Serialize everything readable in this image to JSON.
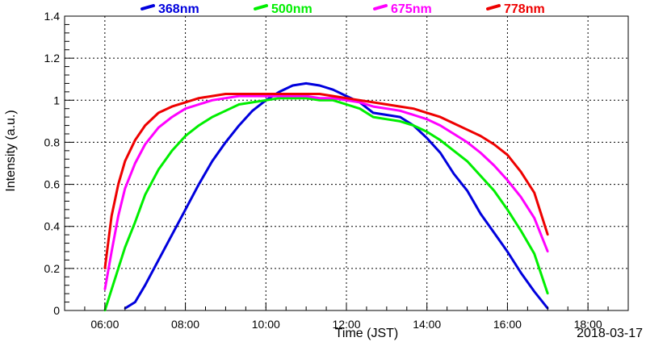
{
  "chart_data": {
    "type": "line",
    "title": "",
    "xlabel": "Time (JST)",
    "ylabel": "Intensity (a.u.)",
    "date_label": "2018-03-17",
    "xlim": [
      "05:00",
      "19:00"
    ],
    "ylim": [
      0,
      1.4
    ],
    "x_ticks": [
      "06:00",
      "08:00",
      "10:00",
      "12:00",
      "14:00",
      "16:00",
      "18:00"
    ],
    "y_ticks": [
      "0",
      "0.2",
      "0.4",
      "0.6",
      "0.8",
      "1",
      "1.2",
      "1.4"
    ],
    "grid": true,
    "legend_position": "top",
    "x": [
      "06:00",
      "06:10",
      "06:20",
      "06:30",
      "06:45",
      "07:00",
      "07:20",
      "07:40",
      "08:00",
      "08:20",
      "08:40",
      "09:00",
      "09:20",
      "09:40",
      "10:00",
      "10:20",
      "10:40",
      "11:00",
      "11:20",
      "11:40",
      "12:00",
      "12:20",
      "12:40",
      "13:00",
      "13:20",
      "13:40",
      "14:00",
      "14:20",
      "14:40",
      "15:00",
      "15:20",
      "15:40",
      "16:00",
      "16:20",
      "16:40",
      "17:00"
    ],
    "series": [
      {
        "name": "368nm",
        "color": "#0000dd",
        "values": [
          null,
          null,
          null,
          0.01,
          0.04,
          0.12,
          0.24,
          0.36,
          0.48,
          0.6,
          0.71,
          0.8,
          0.88,
          0.95,
          1.0,
          1.04,
          1.07,
          1.08,
          1.07,
          1.05,
          1.02,
          0.99,
          0.94,
          0.93,
          0.92,
          0.88,
          0.82,
          0.75,
          0.65,
          0.57,
          0.46,
          0.37,
          0.28,
          0.18,
          0.09,
          0.01
        ]
      },
      {
        "name": "500nm",
        "color": "#00ee00",
        "values": [
          0.0,
          0.1,
          0.2,
          0.3,
          0.42,
          0.55,
          0.67,
          0.76,
          0.83,
          0.88,
          0.92,
          0.95,
          0.98,
          0.99,
          1.0,
          1.01,
          1.01,
          1.01,
          1.0,
          1.0,
          0.98,
          0.96,
          0.92,
          0.91,
          0.9,
          0.88,
          0.85,
          0.81,
          0.76,
          0.71,
          0.64,
          0.57,
          0.48,
          0.38,
          0.27,
          0.08
        ]
      },
      {
        "name": "675nm",
        "color": "#ff00ff",
        "values": [
          0.1,
          0.28,
          0.45,
          0.58,
          0.7,
          0.79,
          0.87,
          0.92,
          0.96,
          0.98,
          1.0,
          1.01,
          1.02,
          1.02,
          1.02,
          1.02,
          1.02,
          1.02,
          1.01,
          1.01,
          1.0,
          0.99,
          0.97,
          0.96,
          0.95,
          0.93,
          0.91,
          0.88,
          0.84,
          0.8,
          0.75,
          0.69,
          0.62,
          0.54,
          0.44,
          0.28
        ]
      },
      {
        "name": "778nm",
        "color": "#ee0000",
        "values": [
          0.2,
          0.45,
          0.6,
          0.71,
          0.81,
          0.88,
          0.94,
          0.97,
          0.99,
          1.01,
          1.02,
          1.03,
          1.03,
          1.03,
          1.03,
          1.03,
          1.03,
          1.03,
          1.03,
          1.02,
          1.01,
          1.0,
          0.99,
          0.98,
          0.97,
          0.96,
          0.94,
          0.92,
          0.89,
          0.86,
          0.83,
          0.79,
          0.74,
          0.66,
          0.56,
          0.36
        ]
      }
    ]
  }
}
